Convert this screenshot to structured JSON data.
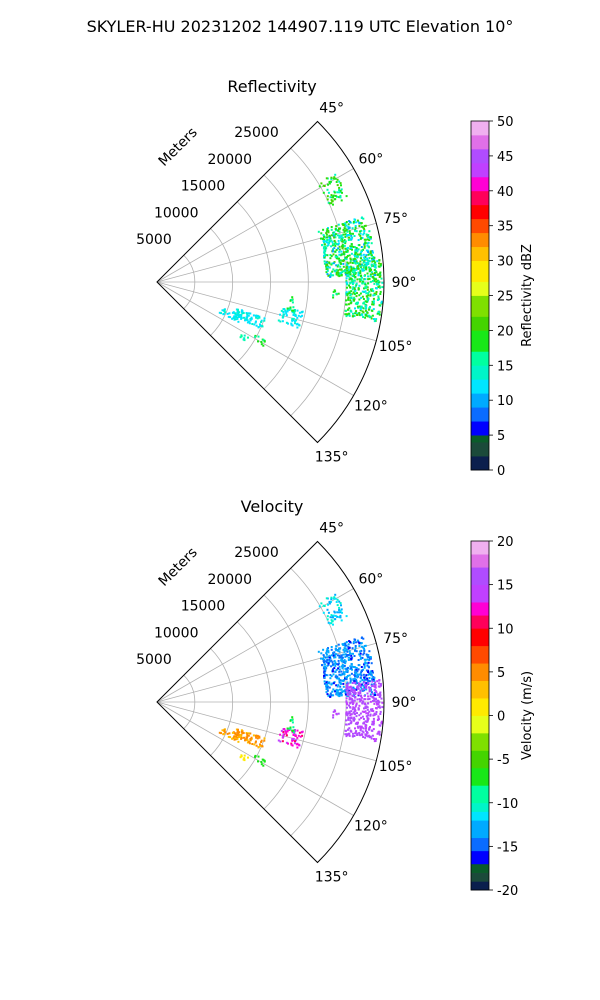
{
  "suptitle": "SKYLER-HU  20231202  144907.119 UTC Elevation 10°",
  "chart_data": [
    {
      "type": "polar-sector",
      "title": "Reflectivity",
      "radial_label": "Meters",
      "range_ticks": [
        "5000",
        "10000",
        "15000",
        "20000",
        "25000"
      ],
      "azimuth_ticks": [
        "45°",
        "60°",
        "75°",
        "90°",
        "105°",
        "120°",
        "135°"
      ],
      "theta_range_deg": [
        45,
        135
      ],
      "r_max_m": 30000,
      "colorbar": {
        "label": "Reflectivity dBZ",
        "vmin": 0,
        "vmax": 50,
        "ticks": [
          "0",
          "5",
          "10",
          "15",
          "20",
          "25",
          "30",
          "35",
          "40",
          "45",
          "50"
        ]
      }
    },
    {
      "type": "polar-sector",
      "title": "Velocity",
      "radial_label": "Meters",
      "range_ticks": [
        "5000",
        "10000",
        "15000",
        "20000",
        "25000"
      ],
      "azimuth_ticks": [
        "45°",
        "60°",
        "75°",
        "90°",
        "105°",
        "120°",
        "135°"
      ],
      "theta_range_deg": [
        45,
        135
      ],
      "r_max_m": 30000,
      "colorbar": {
        "label": "Velocity (m/s)",
        "vmin": -20,
        "vmax": 20,
        "ticks": [
          "-20",
          "-15",
          "-10",
          "-5",
          "0",
          "5",
          "10",
          "15",
          "20"
        ]
      }
    }
  ]
}
